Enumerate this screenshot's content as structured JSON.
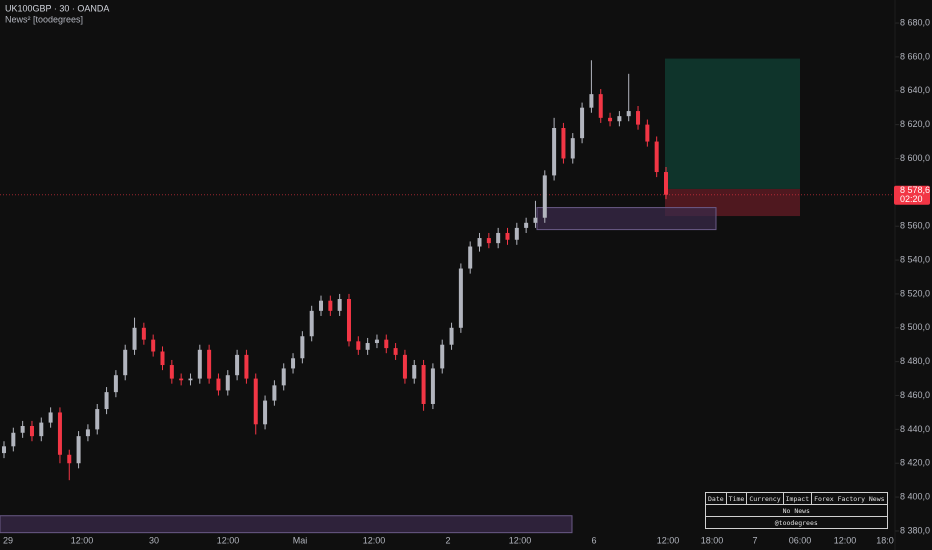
{
  "chart_data": {
    "type": "candlestick",
    "title": "UK100GBP · 30 · OANDA",
    "subtitle": "News² [toodegrees]",
    "up_color": "#b2b5be",
    "down_color": "#f23645",
    "grid": false,
    "ylim": [
      8378.8,
      8693.6
    ],
    "yticks": [
      {
        "value": 8380,
        "label": "8 380,0"
      },
      {
        "value": 8400,
        "label": "8 400,0"
      },
      {
        "value": 8420,
        "label": "8 420,0"
      },
      {
        "value": 8440,
        "label": "8 440,0"
      },
      {
        "value": 8460,
        "label": "8 460,0"
      },
      {
        "value": 8480,
        "label": "8 480,0"
      },
      {
        "value": 8500,
        "label": "8 500,0"
      },
      {
        "value": 8520,
        "label": "8 520,0"
      },
      {
        "value": 8540,
        "label": "8 540,0"
      },
      {
        "value": 8560,
        "label": "8 560,0"
      },
      {
        "value": 8580,
        "label": "8 580,0"
      },
      {
        "value": 8600,
        "label": "8 600,0"
      },
      {
        "value": 8620,
        "label": "8 620,0"
      },
      {
        "value": 8640,
        "label": "8 640,0"
      },
      {
        "value": 8660,
        "label": "8 660,0"
      },
      {
        "value": 8680,
        "label": "8 680,0"
      }
    ],
    "xtick_labels": [
      "29",
      "12:00",
      "30",
      "12:00",
      "Mai",
      "12:00",
      "2",
      "12:00",
      "6",
      "12:00",
      "18:00",
      "7",
      "06:00",
      "12:00",
      "18:0"
    ],
    "open": [
      8426,
      8430,
      8438,
      8442,
      8436,
      8444,
      8450,
      8425,
      8420,
      8436,
      8440,
      8452,
      8462,
      8472,
      8487,
      8500,
      8493,
      8486,
      8478,
      8470,
      8469,
      8470,
      8487,
      8470,
      8463,
      8472,
      8484,
      8470,
      8443,
      8457,
      8466,
      8476,
      8482,
      8495,
      8510,
      8516,
      8510,
      8517,
      8492,
      8487,
      8491,
      8493,
      8488,
      8484,
      8470,
      8478,
      8455,
      8476,
      8490,
      8500,
      8535,
      8548,
      8553,
      8550,
      8556,
      8552,
      8559,
      8562,
      8565,
      8590,
      8618,
      8600,
      8612,
      8630,
      8638,
      8624,
      8622,
      8625,
      8628,
      8620,
      8610,
      8592
    ],
    "high": [
      8433,
      8441,
      8445,
      8445,
      8447,
      8453,
      8453,
      8428,
      8439,
      8443,
      8455,
      8465,
      8475,
      8490,
      8506,
      8503,
      8496,
      8489,
      8481,
      8473,
      8473,
      8490,
      8490,
      8473,
      8475,
      8487,
      8487,
      8473,
      8460,
      8469,
      8479,
      8485,
      8498,
      8513,
      8519,
      8519,
      8520,
      8520,
      8495,
      8494,
      8496,
      8496,
      8491,
      8487,
      8481,
      8481,
      8479,
      8493,
      8503,
      8538,
      8551,
      8556,
      8556,
      8559,
      8559,
      8562,
      8565,
      8575,
      8593,
      8624,
      8621,
      8615,
      8633,
      8658,
      8641,
      8627,
      8628,
      8650,
      8631,
      8623,
      8613,
      8595
    ],
    "low": [
      8423,
      8427,
      8435,
      8433,
      8433,
      8441,
      8420,
      8410,
      8417,
      8433,
      8437,
      8449,
      8459,
      8469,
      8484,
      8490,
      8483,
      8475,
      8467,
      8466,
      8466,
      8467,
      8467,
      8460,
      8460,
      8469,
      8467,
      8437,
      8440,
      8454,
      8463,
      8473,
      8479,
      8492,
      8507,
      8507,
      8507,
      8489,
      8484,
      8484,
      8488,
      8485,
      8481,
      8467,
      8467,
      8451,
      8452,
      8473,
      8487,
      8497,
      8532,
      8545,
      8547,
      8547,
      8549,
      8549,
      8556,
      8559,
      8562,
      8587,
      8597,
      8597,
      8609,
      8627,
      8621,
      8619,
      8619,
      8622,
      8617,
      8607,
      8589,
      8576
    ],
    "close": [
      8430,
      8438,
      8442,
      8436,
      8444,
      8450,
      8425,
      8420,
      8436,
      8440,
      8452,
      8462,
      8472,
      8487,
      8500,
      8493,
      8486,
      8478,
      8470,
      8469,
      8470,
      8487,
      8470,
      8463,
      8472,
      8484,
      8470,
      8443,
      8457,
      8466,
      8476,
      8482,
      8495,
      8510,
      8516,
      8510,
      8517,
      8492,
      8487,
      8491,
      8493,
      8488,
      8484,
      8470,
      8478,
      8455,
      8476,
      8490,
      8500,
      8535,
      8548,
      8553,
      8550,
      8556,
      8552,
      8559,
      8562,
      8565,
      8590,
      8618,
      8600,
      8612,
      8630,
      8638,
      8624,
      8622,
      8625,
      8628,
      8620,
      8610,
      8592,
      8578.6
    ],
    "last_label": "8 578,6",
    "countdown": "02:20",
    "zones": [
      {
        "top": 8659,
        "bottom": 8582,
        "color": "#0f3b30"
      },
      {
        "top": 8582,
        "bottom": 8566,
        "color": "#5a1a22"
      },
      {
        "top": 8571,
        "bottom": 8558,
        "color": "#3a2a4a"
      },
      {
        "top": 8389,
        "bottom": 8379,
        "color": "#3a2a4a"
      }
    ]
  },
  "news_table": {
    "headers": [
      "Date",
      "Time",
      "Currency",
      "Impact",
      "Forex Factory News"
    ],
    "rows": [
      [
        "No News"
      ],
      [
        "@toodegrees"
      ]
    ]
  }
}
